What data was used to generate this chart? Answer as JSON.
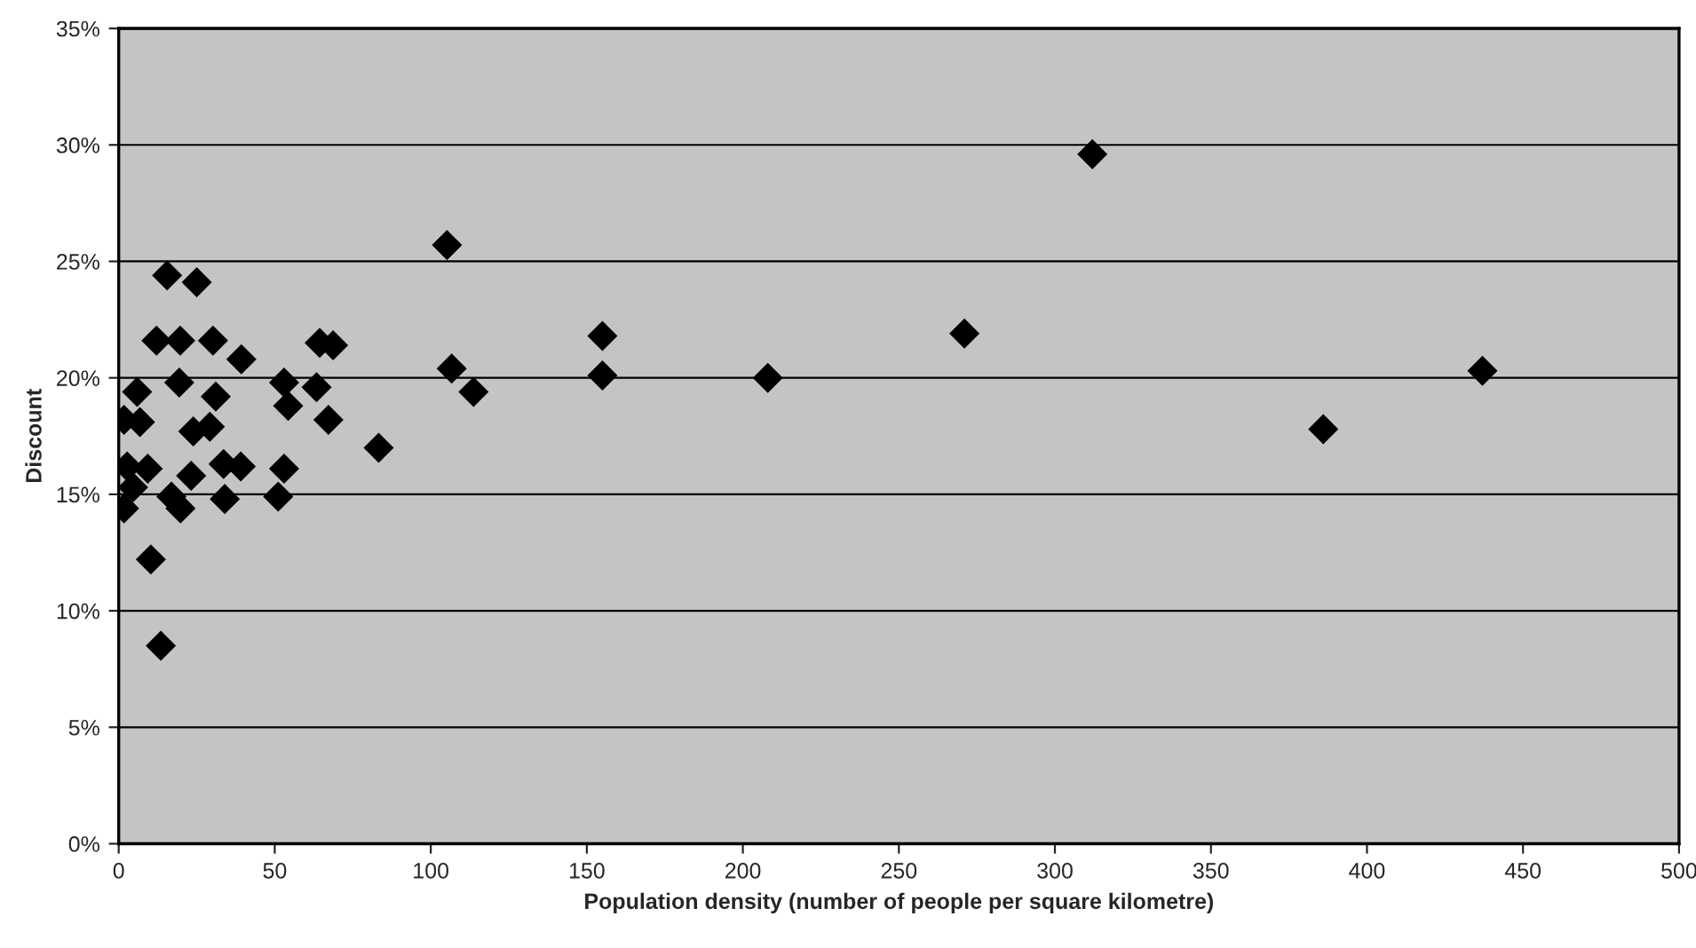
{
  "chart_data": {
    "type": "scatter",
    "xlabel": "Population density (number of people per square kilometre)",
    "ylabel": "Discount",
    "x": [
      15.5,
      25,
      12.1,
      19.7,
      30.2,
      39.3,
      64.4,
      68.7,
      105.2,
      106.7,
      113.7,
      5.9,
      19.4,
      31.1,
      53,
      54.3,
      63.4,
      67.2,
      83.3,
      1.7,
      6.8,
      23.9,
      29.2,
      2.7,
      9.3,
      33.6,
      39.1,
      23.2,
      53,
      4.6,
      1.7,
      16.9,
      19.8,
      34,
      51.1,
      10.3,
      13.5,
      155,
      155,
      208,
      271,
      312,
      386,
      437
    ],
    "values": [
      24.4,
      24.1,
      21.6,
      21.6,
      21.6,
      20.8,
      21.5,
      21.4,
      25.7,
      20.4,
      19.4,
      19.4,
      19.8,
      19.2,
      19.8,
      18.8,
      19.6,
      18.2,
      17.0,
      18.2,
      18.1,
      17.7,
      17.9,
      16.2,
      16.1,
      16.3,
      16.2,
      15.8,
      16.1,
      15.3,
      14.4,
      14.9,
      14.4,
      14.8,
      14.9,
      12.2,
      8.5,
      21.8,
      20.1,
      20.0,
      21.9,
      29.6,
      17.8,
      20.3
    ],
    "color": "#000000",
    "marker": "diamond",
    "grid": "y",
    "xlim": [
      0,
      500
    ],
    "xticks": [
      0,
      50,
      100,
      150,
      200,
      250,
      300,
      350,
      400,
      450,
      500
    ],
    "ylim": [
      0,
      35
    ],
    "yticks": [
      {
        "value": 0,
        "label": "0%"
      },
      {
        "value": 5,
        "label": "5%"
      },
      {
        "value": 10,
        "label": "10%"
      },
      {
        "value": 15,
        "label": "15%"
      },
      {
        "value": 20,
        "label": "20%"
      },
      {
        "value": 25,
        "label": "25%"
      },
      {
        "value": 30,
        "label": "30%"
      },
      {
        "value": 35,
        "label": "35%"
      }
    ]
  }
}
